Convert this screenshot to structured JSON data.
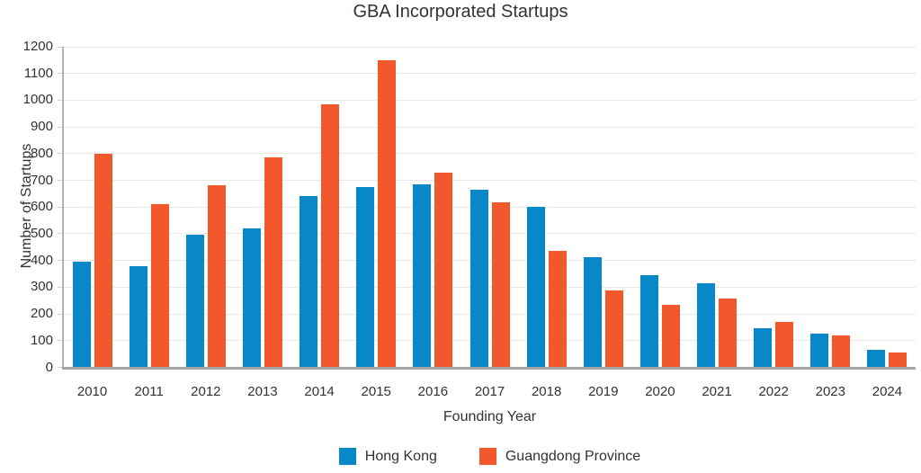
{
  "chart_data": {
    "type": "bar",
    "title": "GBA Incorporated Startups",
    "xlabel": "Founding Year",
    "ylabel": "Number of Startups",
    "categories": [
      "2010",
      "2011",
      "2012",
      "2013",
      "2014",
      "2015",
      "2016",
      "2017",
      "2018",
      "2019",
      "2020",
      "2021",
      "2022",
      "2023",
      "2024"
    ],
    "series": [
      {
        "name": "Hong Kong",
        "color": "#0887c9",
        "values": [
          395,
          380,
          495,
          520,
          640,
          675,
          685,
          665,
          602,
          413,
          346,
          316,
          148,
          127,
          65
        ]
      },
      {
        "name": "Guangdong Province",
        "color": "#f2582b",
        "values": [
          800,
          612,
          680,
          785,
          985,
          1148,
          730,
          617,
          436,
          288,
          235,
          257,
          170,
          119,
          56
        ]
      }
    ],
    "ylim": [
      0,
      1200
    ],
    "ytick_step": 100,
    "grid": "horizontal",
    "legend_position": "bottom"
  },
  "colors": {
    "gridline": "#e9e9e9",
    "x_axis": "#a6a4a4",
    "y_axis": "#b3b1b1",
    "text": "#363130"
  }
}
